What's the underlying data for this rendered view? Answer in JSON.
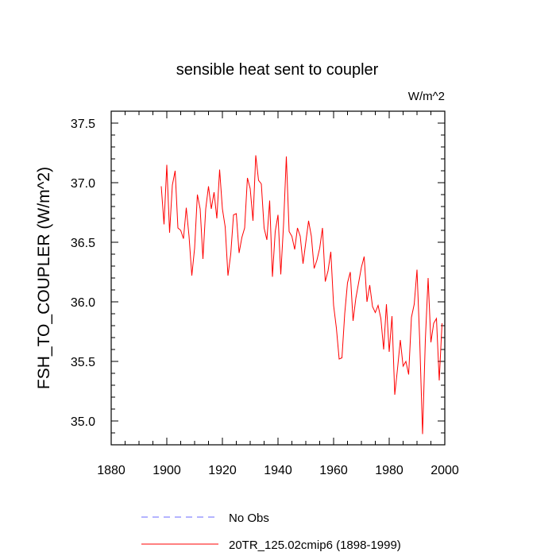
{
  "chart_data": {
    "type": "line",
    "title": "sensible heat sent to coupler",
    "units": "W/m^2",
    "ylabel": "FSH_TO_COUPLER  (W/m^2)",
    "xlabel": "",
    "xlim": [
      1880,
      2000
    ],
    "ylim": [
      34.8,
      37.6
    ],
    "x_ticks": [
      1880,
      1900,
      1920,
      1940,
      1960,
      1980,
      2000
    ],
    "y_ticks": [
      35.0,
      35.5,
      36.0,
      36.5,
      37.0,
      37.5
    ],
    "x_tick_labels": [
      "1880",
      "1900",
      "1920",
      "1940",
      "1960",
      "1980",
      "2000"
    ],
    "y_tick_labels": [
      "35.0",
      "35.5",
      "36.0",
      "36.5",
      "37.0",
      "37.5"
    ],
    "grid": false,
    "legend_position": "bottom",
    "series": [
      {
        "name": "No Obs",
        "color": "#6a6aff",
        "dash": "dashed",
        "x": [],
        "y": []
      },
      {
        "name": "20TR_125.02cmip6 (1898-1999)",
        "color": "#ff0000",
        "dash": "solid",
        "x": [
          1898,
          1899,
          1900,
          1901,
          1902,
          1903,
          1904,
          1905,
          1906,
          1907,
          1908,
          1909,
          1910,
          1911,
          1912,
          1913,
          1914,
          1915,
          1916,
          1917,
          1918,
          1919,
          1920,
          1921,
          1922,
          1923,
          1924,
          1925,
          1926,
          1927,
          1928,
          1929,
          1930,
          1931,
          1932,
          1933,
          1934,
          1935,
          1936,
          1937,
          1938,
          1939,
          1940,
          1941,
          1942,
          1943,
          1944,
          1945,
          1946,
          1947,
          1948,
          1949,
          1950,
          1951,
          1952,
          1953,
          1954,
          1955,
          1956,
          1957,
          1958,
          1959,
          1960,
          1961,
          1962,
          1963,
          1964,
          1965,
          1966,
          1967,
          1968,
          1969,
          1970,
          1971,
          1972,
          1973,
          1974,
          1975,
          1976,
          1977,
          1978,
          1979,
          1980,
          1981,
          1982,
          1983,
          1984,
          1985,
          1986,
          1987,
          1988,
          1989,
          1990,
          1991,
          1992,
          1993,
          1994,
          1995,
          1996,
          1997,
          1998,
          1999
        ],
        "y": [
          36.97,
          36.65,
          37.15,
          36.58,
          36.98,
          37.1,
          36.62,
          36.6,
          36.53,
          36.79,
          36.55,
          36.22,
          36.45,
          36.9,
          36.78,
          36.36,
          36.78,
          36.97,
          36.78,
          36.92,
          36.7,
          37.11,
          36.78,
          36.63,
          36.22,
          36.4,
          36.73,
          36.74,
          36.41,
          36.54,
          36.62,
          37.04,
          36.95,
          36.68,
          37.23,
          37.02,
          36.99,
          36.62,
          36.52,
          36.85,
          36.21,
          36.59,
          36.73,
          36.23,
          36.65,
          37.22,
          36.59,
          36.55,
          36.44,
          36.62,
          36.55,
          36.32,
          36.5,
          36.68,
          36.55,
          36.28,
          36.35,
          36.45,
          36.62,
          36.17,
          36.26,
          36.42,
          35.97,
          35.78,
          35.52,
          35.53,
          35.9,
          36.16,
          36.25,
          35.84,
          36.03,
          36.16,
          36.29,
          36.38,
          36.0,
          36.14,
          35.96,
          35.91,
          35.97,
          35.86,
          35.6,
          35.98,
          35.58,
          35.88,
          35.22,
          35.44,
          35.68,
          35.46,
          35.5,
          35.39,
          35.87,
          35.98,
          36.27,
          35.66,
          34.89,
          35.68,
          36.2,
          35.66,
          35.82,
          35.86,
          35.34,
          35.82
        ]
      }
    ]
  }
}
